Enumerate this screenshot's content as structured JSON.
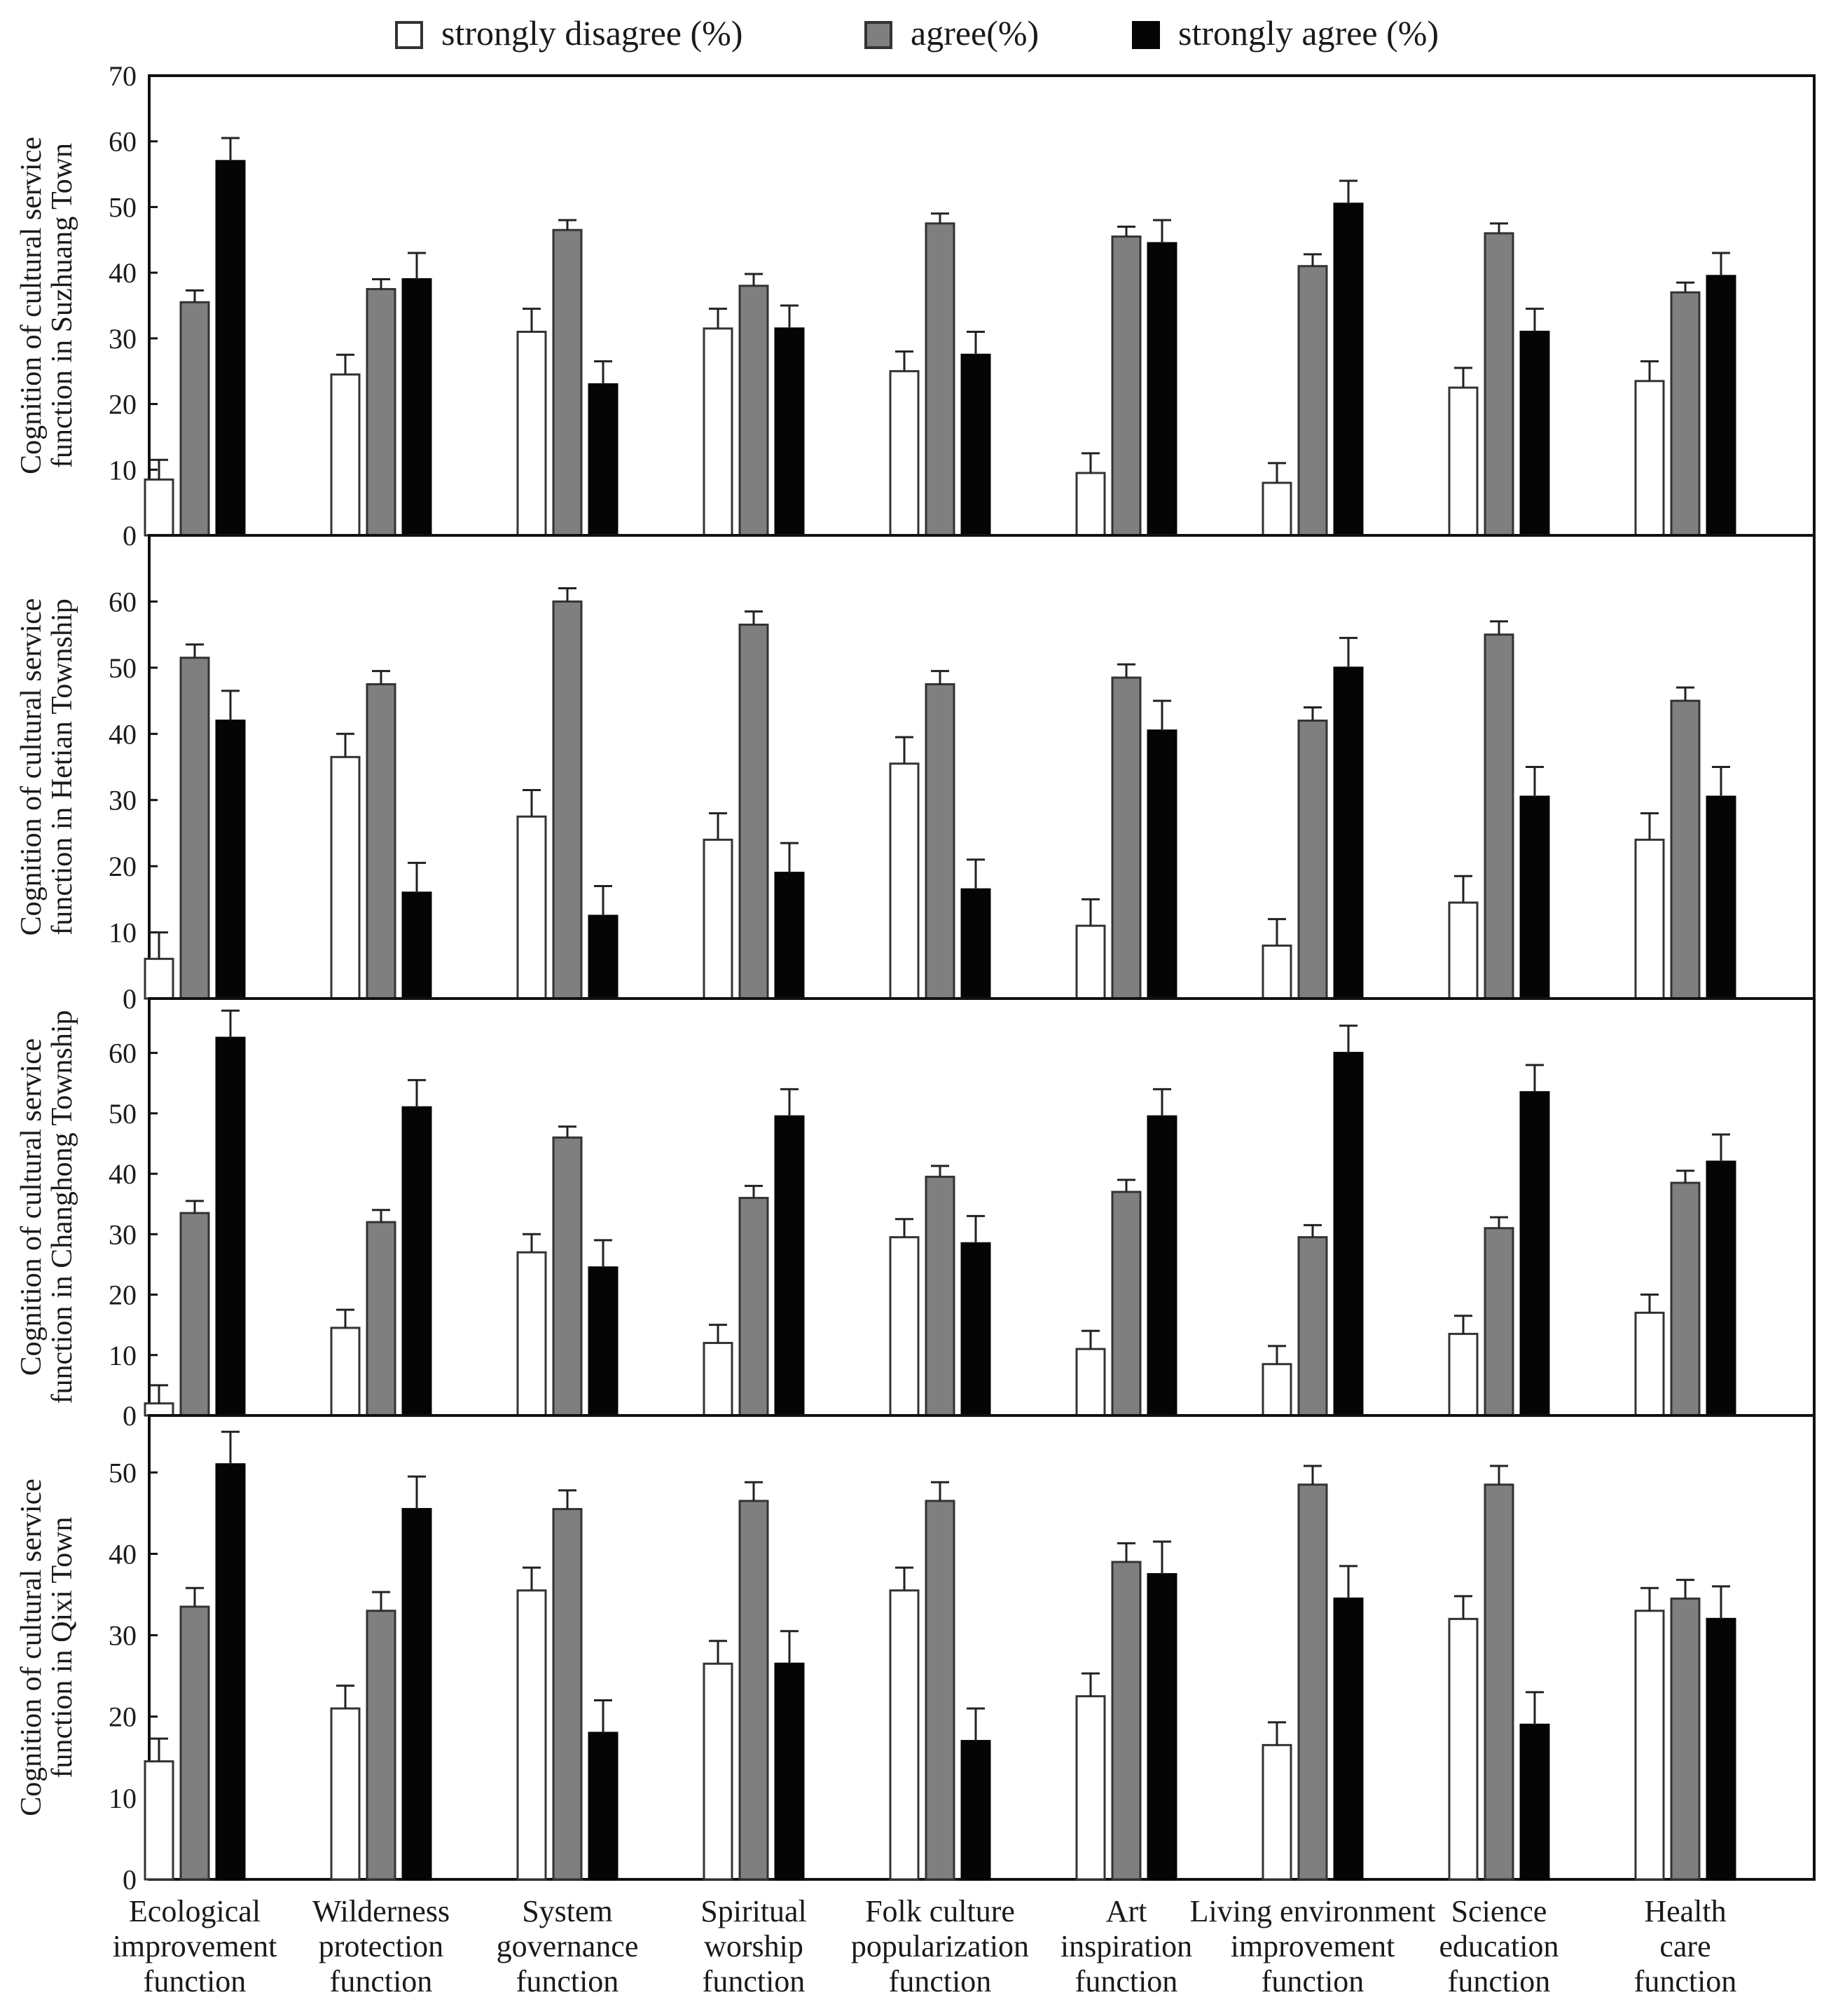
{
  "chart_data": {
    "type": "bar",
    "legend_position": "top",
    "series_style": [
      {
        "name": "strongly disagree (%)",
        "fill": "#ffffff",
        "stroke": "#333333"
      },
      {
        "name": "agree(%)",
        "fill": "#7f7f7f",
        "stroke": "#333333"
      },
      {
        "name": "strongly agree (%)",
        "fill": "#050505",
        "stroke": "#050505"
      }
    ],
    "categories": [
      [
        "Ecological",
        "improvement",
        "function"
      ],
      [
        "Wilderness",
        "protection",
        "function"
      ],
      [
        "System",
        "governance",
        "function"
      ],
      [
        "Spiritual",
        "worship",
        "function"
      ],
      [
        "Folk culture",
        "popularization",
        "function"
      ],
      [
        "Art",
        "inspiration",
        "function"
      ],
      [
        "Living environment",
        "improvement",
        "function"
      ],
      [
        "Science",
        "education",
        "function"
      ],
      [
        "Health",
        "care",
        "function"
      ]
    ],
    "panels": [
      {
        "ylabel": [
          "Cognition of cultural service",
          "function in Suzhuang Town"
        ],
        "ylim": [
          0,
          70
        ],
        "yticks": [
          0,
          10,
          20,
          30,
          40,
          50,
          60,
          70
        ],
        "series": [
          {
            "name": "strongly disagree (%)",
            "values": [
              8.5,
              24.5,
              31,
              31.5,
              25,
              9.5,
              8,
              22.5,
              23.5
            ],
            "errors": [
              3,
              3,
              3.5,
              3,
              3,
              3,
              3,
              3,
              3
            ]
          },
          {
            "name": "agree(%)",
            "values": [
              35.5,
              37.5,
              46.5,
              38,
              47.5,
              45.5,
              41,
              46,
              37
            ],
            "errors": [
              1.8,
              1.5,
              1.5,
              1.8,
              1.5,
              1.5,
              1.8,
              1.5,
              1.5
            ]
          },
          {
            "name": "strongly agree (%)",
            "values": [
              57,
              39,
              23,
              31.5,
              27.5,
              44.5,
              50.5,
              31,
              39.5
            ],
            "errors": [
              3.5,
              4,
              3.5,
              3.5,
              3.5,
              3.5,
              3.5,
              3.5,
              3.5
            ]
          }
        ]
      },
      {
        "ylabel": [
          "Cognition of cultural service",
          "function in Hetian Township"
        ],
        "ylim": [
          0,
          70
        ],
        "yticks": [
          0,
          10,
          20,
          30,
          40,
          50,
          60
        ],
        "series": [
          {
            "name": "strongly disagree (%)",
            "values": [
              6,
              36.5,
              27.5,
              24,
              35.5,
              11,
              8,
              14.5,
              24
            ],
            "errors": [
              4,
              3.5,
              4,
              4,
              4,
              4,
              4,
              4,
              4
            ]
          },
          {
            "name": "agree(%)",
            "values": [
              51.5,
              47.5,
              60,
              56.5,
              47.5,
              48.5,
              42,
              55,
              45
            ],
            "errors": [
              2,
              2,
              2,
              2,
              2,
              2,
              2,
              2,
              2
            ]
          },
          {
            "name": "strongly agree (%)",
            "values": [
              42,
              16,
              12.5,
              19,
              16.5,
              40.5,
              50,
              30.5,
              30.5
            ],
            "errors": [
              4.5,
              4.5,
              4.5,
              4.5,
              4.5,
              4.5,
              4.5,
              4.5,
              4.5
            ]
          }
        ]
      },
      {
        "ylabel": [
          "Cognition of cultural service",
          "function in Changhong Township"
        ],
        "ylim": [
          0,
          69
        ],
        "yticks": [
          0,
          10,
          20,
          30,
          40,
          50,
          60
        ],
        "series": [
          {
            "name": "strongly disagree (%)",
            "values": [
              2,
              14.5,
              27,
              12,
              29.5,
              11,
              8.5,
              13.5,
              17
            ],
            "errors": [
              3,
              3,
              3,
              3,
              3,
              3,
              3,
              3,
              3
            ]
          },
          {
            "name": "agree(%)",
            "values": [
              33.5,
              32,
              46,
              36,
              39.5,
              37,
              29.5,
              31,
              38.5
            ],
            "errors": [
              2,
              2,
              1.8,
              2,
              1.8,
              2,
              2,
              1.8,
              2
            ]
          },
          {
            "name": "strongly agree (%)",
            "values": [
              62.5,
              51,
              24.5,
              49.5,
              28.5,
              49.5,
              60,
              53.5,
              42
            ],
            "errors": [
              4.5,
              4.5,
              4.5,
              4.5,
              4.5,
              4.5,
              4.5,
              4.5,
              4.5
            ]
          }
        ]
      },
      {
        "ylabel": [
          "Cognition of cultural service",
          "function in Qixi Town"
        ],
        "ylim": [
          0,
          57
        ],
        "yticks": [
          0,
          10,
          20,
          30,
          40,
          50
        ],
        "series": [
          {
            "name": "strongly disagree (%)",
            "values": [
              14.5,
              21,
              35.5,
              26.5,
              35.5,
              22.5,
              16.5,
              32,
              33
            ],
            "errors": [
              2.8,
              2.8,
              2.8,
              2.8,
              2.8,
              2.8,
              2.8,
              2.8,
              2.8
            ]
          },
          {
            "name": "agree(%)",
            "values": [
              33.5,
              33,
              45.5,
              46.5,
              46.5,
              39,
              48.5,
              48.5,
              34.5
            ],
            "errors": [
              2.3,
              2.3,
              2.3,
              2.3,
              2.3,
              2.3,
              2.3,
              2.3,
              2.3
            ]
          },
          {
            "name": "strongly agree (%)",
            "values": [
              51,
              45.5,
              18,
              26.5,
              17,
              37.5,
              34.5,
              19,
              32
            ],
            "errors": [
              4,
              4,
              4,
              4,
              4,
              4,
              4,
              4,
              4
            ]
          }
        ]
      }
    ]
  }
}
